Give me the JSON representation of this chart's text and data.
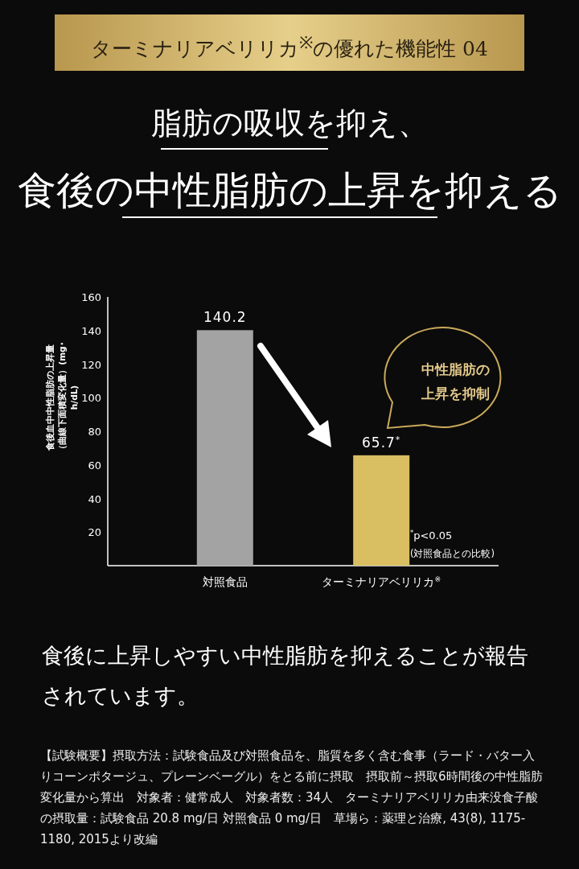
{
  "chart_data": {
    "type": "bar",
    "title": "脂肪の吸収を抑え、",
    "subtitle": "食後の中性脂肪の上昇を抑える",
    "ylabel": "食後血中中性脂肪の上昇量（曲線下面積変化量）(mg･h/dL)",
    "categories": [
      "対照食品",
      "ターミナリアベリリカ$^{※}$"
    ],
    "values": [
      140.2,
      65.7
    ],
    "colors": [
      "#a3a3a3",
      "#d9bf62"
    ],
    "value_labels": [
      "140.2",
      "65.7$^{*}$"
    ],
    "ylim": [
      0,
      160
    ],
    "yticks": [
      20,
      40,
      60,
      80,
      100,
      120,
      140,
      160
    ],
    "annotations": [
      "ターミナリアベリリカ$^{※}$の優れた機能性 04",
      "中性脂肪の上昇を抑制",
      "$^{*}$p<0.05",
      "(対照食品との比較)",
      "食後に上昇しやすい中性脂肪を抑えることが報告されています。",
      "【試験概要】摂取方法：試験食品及び対照食品を、脂質を多く含む食事（ラード・バター入りコーンポタージュ、プレーンベーグル）をとる前に摂取　摂取前～摂取6時間後の中性脂肪変化量から算出　対象者：健常成人　対象者数：34人　ターミナリアベリリカ由来没食子酸の摂取量：試験食品 20.8 mg/日 対照食品 0 mg/日　草場ら：薬理と治療, 43(8), 1175-1180, 2015より改編"
    ]
  }
}
